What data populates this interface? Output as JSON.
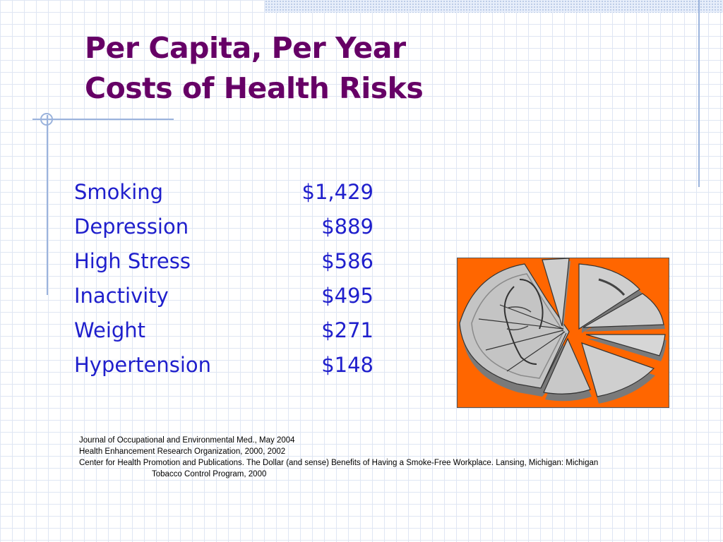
{
  "title": {
    "line1": "Per Capita, Per Year",
    "line2": "Costs of Health Risks"
  },
  "risks": [
    {
      "name": "Smoking",
      "cost": "$1,429"
    },
    {
      "name": "Depression",
      "cost": "$889"
    },
    {
      "name": "High Stress",
      "cost": "$586"
    },
    {
      "name": "Inactivity",
      "cost": "$495"
    },
    {
      "name": "Weight",
      "cost": "$271"
    },
    {
      "name": "Hypertension",
      "cost": "$148"
    }
  ],
  "image": {
    "icon": "broken-coin-icon",
    "background_color": "#ff6600"
  },
  "citations": {
    "line1": "Journal of Occupational and Environmental Med., May 2004",
    "line2": "Health Enhancement Research Organization, 2000, 2002",
    "line3": "Center for Health Promotion and Publications. The Dollar (and sense) Benefits of Having a Smoke-Free Workplace. Lansing, Michigan: Michigan",
    "line3_cont": "Tobacco Control Program, 2000"
  },
  "colors": {
    "title": "#660066",
    "body_text": "#1f1fcc",
    "grid": "#dfe6f3",
    "accent_rule": "#9bb3dc"
  }
}
